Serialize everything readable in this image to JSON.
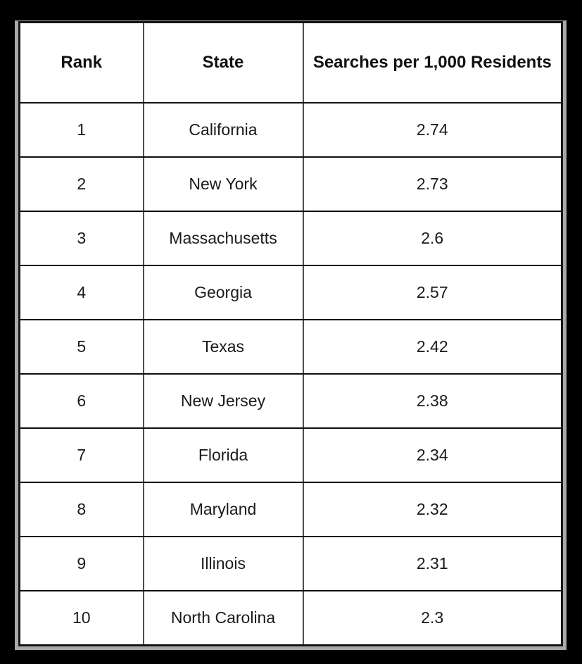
{
  "chart_data": {
    "type": "table",
    "title": "",
    "columns": [
      "Rank",
      "State",
      "Searches per 1,000 Residents"
    ],
    "rows": [
      {
        "rank": "1",
        "state": "California",
        "value": "2.74"
      },
      {
        "rank": "2",
        "state": "New York",
        "value": "2.73"
      },
      {
        "rank": "3",
        "state": "Massachusetts",
        "value": "2.6"
      },
      {
        "rank": "4",
        "state": "Georgia",
        "value": "2.57"
      },
      {
        "rank": "5",
        "state": "Texas",
        "value": "2.42"
      },
      {
        "rank": "6",
        "state": "New Jersey",
        "value": "2.38"
      },
      {
        "rank": "7",
        "state": "Florida",
        "value": "2.34"
      },
      {
        "rank": "8",
        "state": "Maryland",
        "value": "2.32"
      },
      {
        "rank": "9",
        "state": "Illinois",
        "value": "2.31"
      },
      {
        "rank": "10",
        "state": "North Carolina",
        "value": "2.3"
      }
    ],
    "layout_hints": {
      "header_bold": true,
      "cell_alignment": "center",
      "grid": true
    }
  },
  "colors": {
    "page_background": "#000000",
    "table_background": "#ffffff",
    "text": "#1a1a1a",
    "outer_frame": "#a9a9a9",
    "row_border": "#0e0e0e",
    "column_border": "#4d4d4d"
  }
}
